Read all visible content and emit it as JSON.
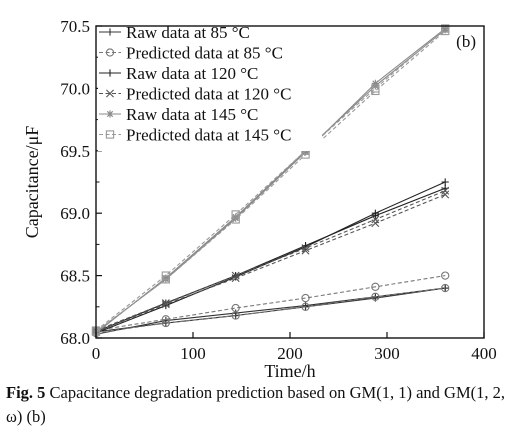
{
  "chart_data": {
    "type": "line",
    "panel_label": "(b)",
    "xlabel": "Time/h",
    "ylabel": "Capacitance/μF",
    "xlim": [
      0,
      400
    ],
    "ylim": [
      68.0,
      70.5
    ],
    "xticks": [
      0,
      100,
      200,
      300,
      400
    ],
    "yticks": [
      68.0,
      68.5,
      69.0,
      69.5,
      70.0,
      70.5
    ],
    "x": [
      0,
      72,
      144,
      216,
      288,
      360
    ],
    "legend_position": "top-left",
    "grid": false,
    "series": [
      {
        "name": "Raw data at 85 °C",
        "marker": "plus",
        "dash": "solid",
        "color": "#333333",
        "groups": [
          [
            68.05,
            68.12,
            68.18,
            68.25,
            68.32,
            68.4
          ],
          [
            68.03,
            68.14,
            68.2,
            68.26,
            68.33,
            68.4
          ]
        ]
      },
      {
        "name": "Predicted data at 85 °C",
        "marker": "circle",
        "dash": "dashed",
        "color": "#777777",
        "groups": [
          [
            68.06,
            68.15,
            68.24,
            68.32,
            68.41,
            68.5
          ],
          [
            68.04,
            68.12,
            68.18,
            68.25,
            68.33,
            68.4
          ]
        ]
      },
      {
        "name": "Raw data at 120 °C",
        "marker": "plus",
        "dash": "solid",
        "color": "#222222",
        "groups": [
          [
            68.05,
            68.28,
            68.5,
            68.74,
            68.98,
            69.2
          ],
          [
            68.04,
            68.26,
            68.49,
            68.73,
            69.0,
            69.25
          ]
        ]
      },
      {
        "name": "Predicted data at 120 °C",
        "marker": "x",
        "dash": "dashed",
        "color": "#555555",
        "groups": [
          [
            68.05,
            68.27,
            68.48,
            68.7,
            68.92,
            69.15
          ],
          [
            68.06,
            68.28,
            68.5,
            68.72,
            68.95,
            69.18
          ]
        ]
      },
      {
        "name": "Raw data at 145 °C",
        "marker": "star",
        "dash": "solid",
        "color": "#888888",
        "groups": [
          [
            68.05,
            68.47,
            68.96,
            69.49,
            70.04,
            70.48
          ],
          [
            68.04,
            68.48,
            68.97,
            69.5,
            70.02,
            70.47
          ]
        ]
      },
      {
        "name": "Predicted data at 145 °C",
        "marker": "square",
        "dash": "dashed",
        "color": "#999999",
        "groups": [
          [
            68.06,
            68.5,
            68.99,
            69.5,
            70.0,
            70.48
          ],
          [
            68.05,
            68.47,
            68.95,
            69.47,
            69.98,
            70.46
          ]
        ]
      }
    ]
  },
  "caption": {
    "fig_label": "Fig. 5",
    "text": " Capacitance degradation prediction based on GM(1, 1) and GM(1, 2, ω) (b)"
  }
}
